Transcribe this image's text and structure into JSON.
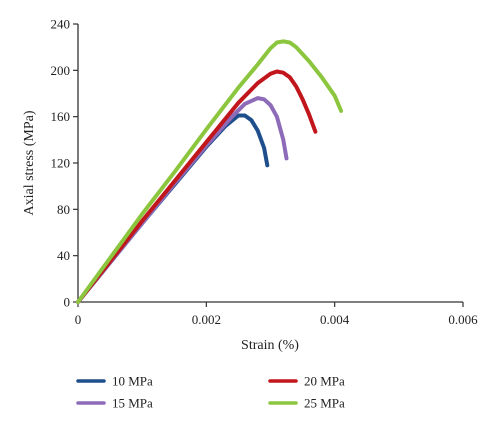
{
  "chart_data": {
    "type": "line",
    "title": "",
    "xlabel": "Strain (%)",
    "ylabel": "Axial stress (MPa)",
    "xlim": [
      0,
      0.006
    ],
    "ylim": [
      0,
      240
    ],
    "xticks": [
      0,
      0.002,
      0.004,
      0.006
    ],
    "xtick_labels": [
      "0",
      "0.002",
      "0.004",
      "0.006"
    ],
    "yticks": [
      0,
      40,
      80,
      120,
      160,
      200,
      240
    ],
    "ytick_labels": [
      "0",
      "40",
      "80",
      "120",
      "160",
      "200",
      "240"
    ],
    "grid": false,
    "legend": "bottom",
    "series": [
      {
        "name": "10 MPa",
        "color": "#1f4e8c",
        "x": [
          0,
          0.0005,
          0.001,
          0.0015,
          0.002,
          0.0023,
          0.0025,
          0.0026,
          0.0027,
          0.0028,
          0.0029,
          0.00295
        ],
        "y": [
          0,
          34,
          68,
          101,
          134,
          152,
          161,
          161,
          157,
          148,
          133,
          118
        ]
      },
      {
        "name": "15 MPa",
        "color": "#8e6bb8",
        "x": [
          0,
          0.0005,
          0.001,
          0.0015,
          0.002,
          0.0024,
          0.0026,
          0.0028,
          0.0029,
          0.003,
          0.0031,
          0.0032,
          0.00325
        ],
        "y": [
          0,
          34,
          68,
          102,
          135,
          160,
          171,
          176,
          175,
          170,
          160,
          140,
          124
        ]
      },
      {
        "name": "20 MPa",
        "color": "#c0161c",
        "x": [
          0,
          0.0005,
          0.001,
          0.0015,
          0.002,
          0.0025,
          0.0028,
          0.003,
          0.0031,
          0.0032,
          0.0033,
          0.0034,
          0.0035,
          0.0036,
          0.0037
        ],
        "y": [
          0,
          35,
          70,
          104,
          138,
          172,
          189,
          197,
          199,
          198,
          194,
          186,
          175,
          162,
          147
        ]
      },
      {
        "name": "25 MPa",
        "color": "#8cc63f",
        "x": [
          0,
          0.0005,
          0.001,
          0.0015,
          0.002,
          0.0025,
          0.0028,
          0.003,
          0.0031,
          0.0032,
          0.0033,
          0.0034,
          0.0036,
          0.0038,
          0.004,
          0.0041
        ],
        "y": [
          0,
          38,
          76,
          112,
          149,
          185,
          205,
          219,
          224,
          225,
          224,
          220,
          208,
          194,
          178,
          165
        ]
      }
    ]
  }
}
